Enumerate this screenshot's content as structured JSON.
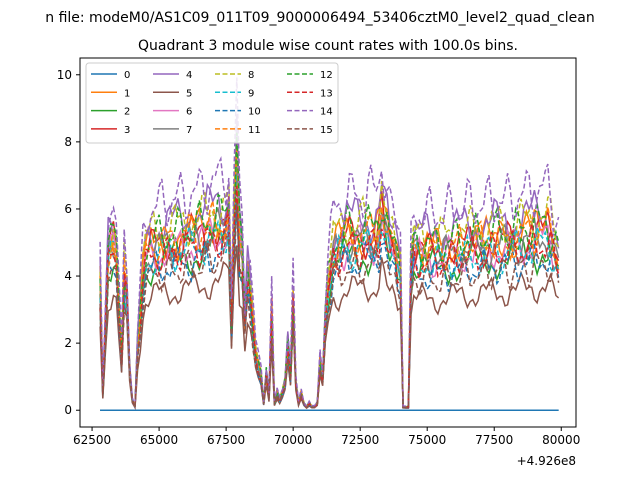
{
  "chart_data": {
    "type": "line",
    "suptitle": "n file: modeM0/AS1C09_011T09_9000006494_53406cztM0_level2_quad_clean",
    "title": "Quadrant 3 module wise count rates with 100.0s bins.",
    "xlabel": "",
    "ylabel": "",
    "x_offset_label": "+4.926e8",
    "xlim": [
      62050,
      80550
    ],
    "ylim": [
      -0.5,
      10.5
    ],
    "x_ticks": [
      62500,
      65000,
      67500,
      70000,
      72500,
      75000,
      77500,
      80000
    ],
    "x_tick_labels": [
      "62500",
      "65000",
      "67500",
      "70000",
      "72500",
      "75000",
      "77500",
      "80000"
    ],
    "y_ticks": [
      0,
      2,
      4,
      6,
      8,
      10
    ],
    "y_tick_labels": [
      "0",
      "2",
      "4",
      "6",
      "8",
      "10"
    ],
    "legend": [
      "0",
      "1",
      "2",
      "3",
      "4",
      "5",
      "6",
      "7",
      "8",
      "9",
      "10",
      "11",
      "12",
      "13",
      "14",
      "15"
    ],
    "legend_position": "upper-left",
    "legend_columns": 4,
    "colors": [
      "#1f77b4",
      "#ff7f0e",
      "#2ca02c",
      "#d62728",
      "#9467bd",
      "#8c564b",
      "#e377c2",
      "#7f7f7f",
      "#bcbd22",
      "#17becf",
      "#1f77b4",
      "#ff7f0e",
      "#2ca02c",
      "#d62728",
      "#9467bd",
      "#8c564b"
    ],
    "dashed": [
      false,
      false,
      false,
      false,
      false,
      false,
      false,
      false,
      true,
      true,
      true,
      true,
      true,
      true,
      true,
      true
    ],
    "x_range": [
      62800,
      79900
    ],
    "bin_seconds": 100,
    "base_profile": {
      "x": [
        62800,
        62900,
        63000,
        63100,
        63200,
        63300,
        63400,
        63500,
        63600,
        63700,
        63800,
        63900,
        64000,
        64100,
        64200,
        64300,
        64400,
        64500,
        64600,
        64700,
        65000,
        65500,
        66000,
        66500,
        67000,
        67400,
        67500,
        67600,
        67700,
        67800,
        67900,
        68000,
        68100,
        68200,
        68300,
        68400,
        68500,
        68600,
        68700,
        68800,
        68900,
        69000,
        69100,
        69200,
        69300,
        69400,
        69500,
        69600,
        69700,
        69800,
        69900,
        70000,
        70100,
        70200,
        70300,
        70400,
        70500,
        70600,
        70700,
        70800,
        70900,
        71000,
        71100,
        71200,
        71300,
        71500,
        72000,
        72500,
        73000,
        73200,
        73300,
        73400,
        73500,
        73600,
        73800,
        73900,
        74000,
        74100,
        74200,
        74300,
        74400,
        74500,
        75000,
        75500,
        76000,
        76500,
        77000,
        77500,
        78000,
        78500,
        79000,
        79500,
        79900
      ],
      "y": [
        3.6,
        0.5,
        2.5,
        4.6,
        4.8,
        4.9,
        4.6,
        3.0,
        1.5,
        4.0,
        3.4,
        1.2,
        0.3,
        0.1,
        1.8,
        2.8,
        4.0,
        4.5,
        4.6,
        4.7,
        4.8,
        4.9,
        5.0,
        5.1,
        5.3,
        5.4,
        5.5,
        5.8,
        2.5,
        5.5,
        7.4,
        5.0,
        4.5,
        2.5,
        3.8,
        3.4,
        2.5,
        1.6,
        1.3,
        1.0,
        0.2,
        1.1,
        0.4,
        2.9,
        0.2,
        0.5,
        0.3,
        0.5,
        0.8,
        1.9,
        1.0,
        3.3,
        0.8,
        0.2,
        0.5,
        0.2,
        0.1,
        0.2,
        0.1,
        0.1,
        0.2,
        1.4,
        0.9,
        2.6,
        3.6,
        4.6,
        5.0,
        5.0,
        5.1,
        5.4,
        6.0,
        5.4,
        5.0,
        4.6,
        4.6,
        4.4,
        4.4,
        0.1,
        0.1,
        0.1,
        4.0,
        4.6,
        4.6,
        4.6,
        4.7,
        4.8,
        4.8,
        4.9,
        4.9,
        5.0,
        5.1,
        5.2,
        4.4
      ]
    },
    "series_scale": [
      0,
      1.05,
      0.92,
      1.02,
      1.14,
      0.72,
      0.98,
      1.0,
      1.12,
      0.96,
      0.88,
      1.04,
      1.08,
      0.96,
      1.28,
      0.84
    ],
    "series": [
      {
        "name": "0",
        "x": [
          62800,
          79900
        ],
        "values": [
          0,
          0
        ]
      }
    ]
  }
}
